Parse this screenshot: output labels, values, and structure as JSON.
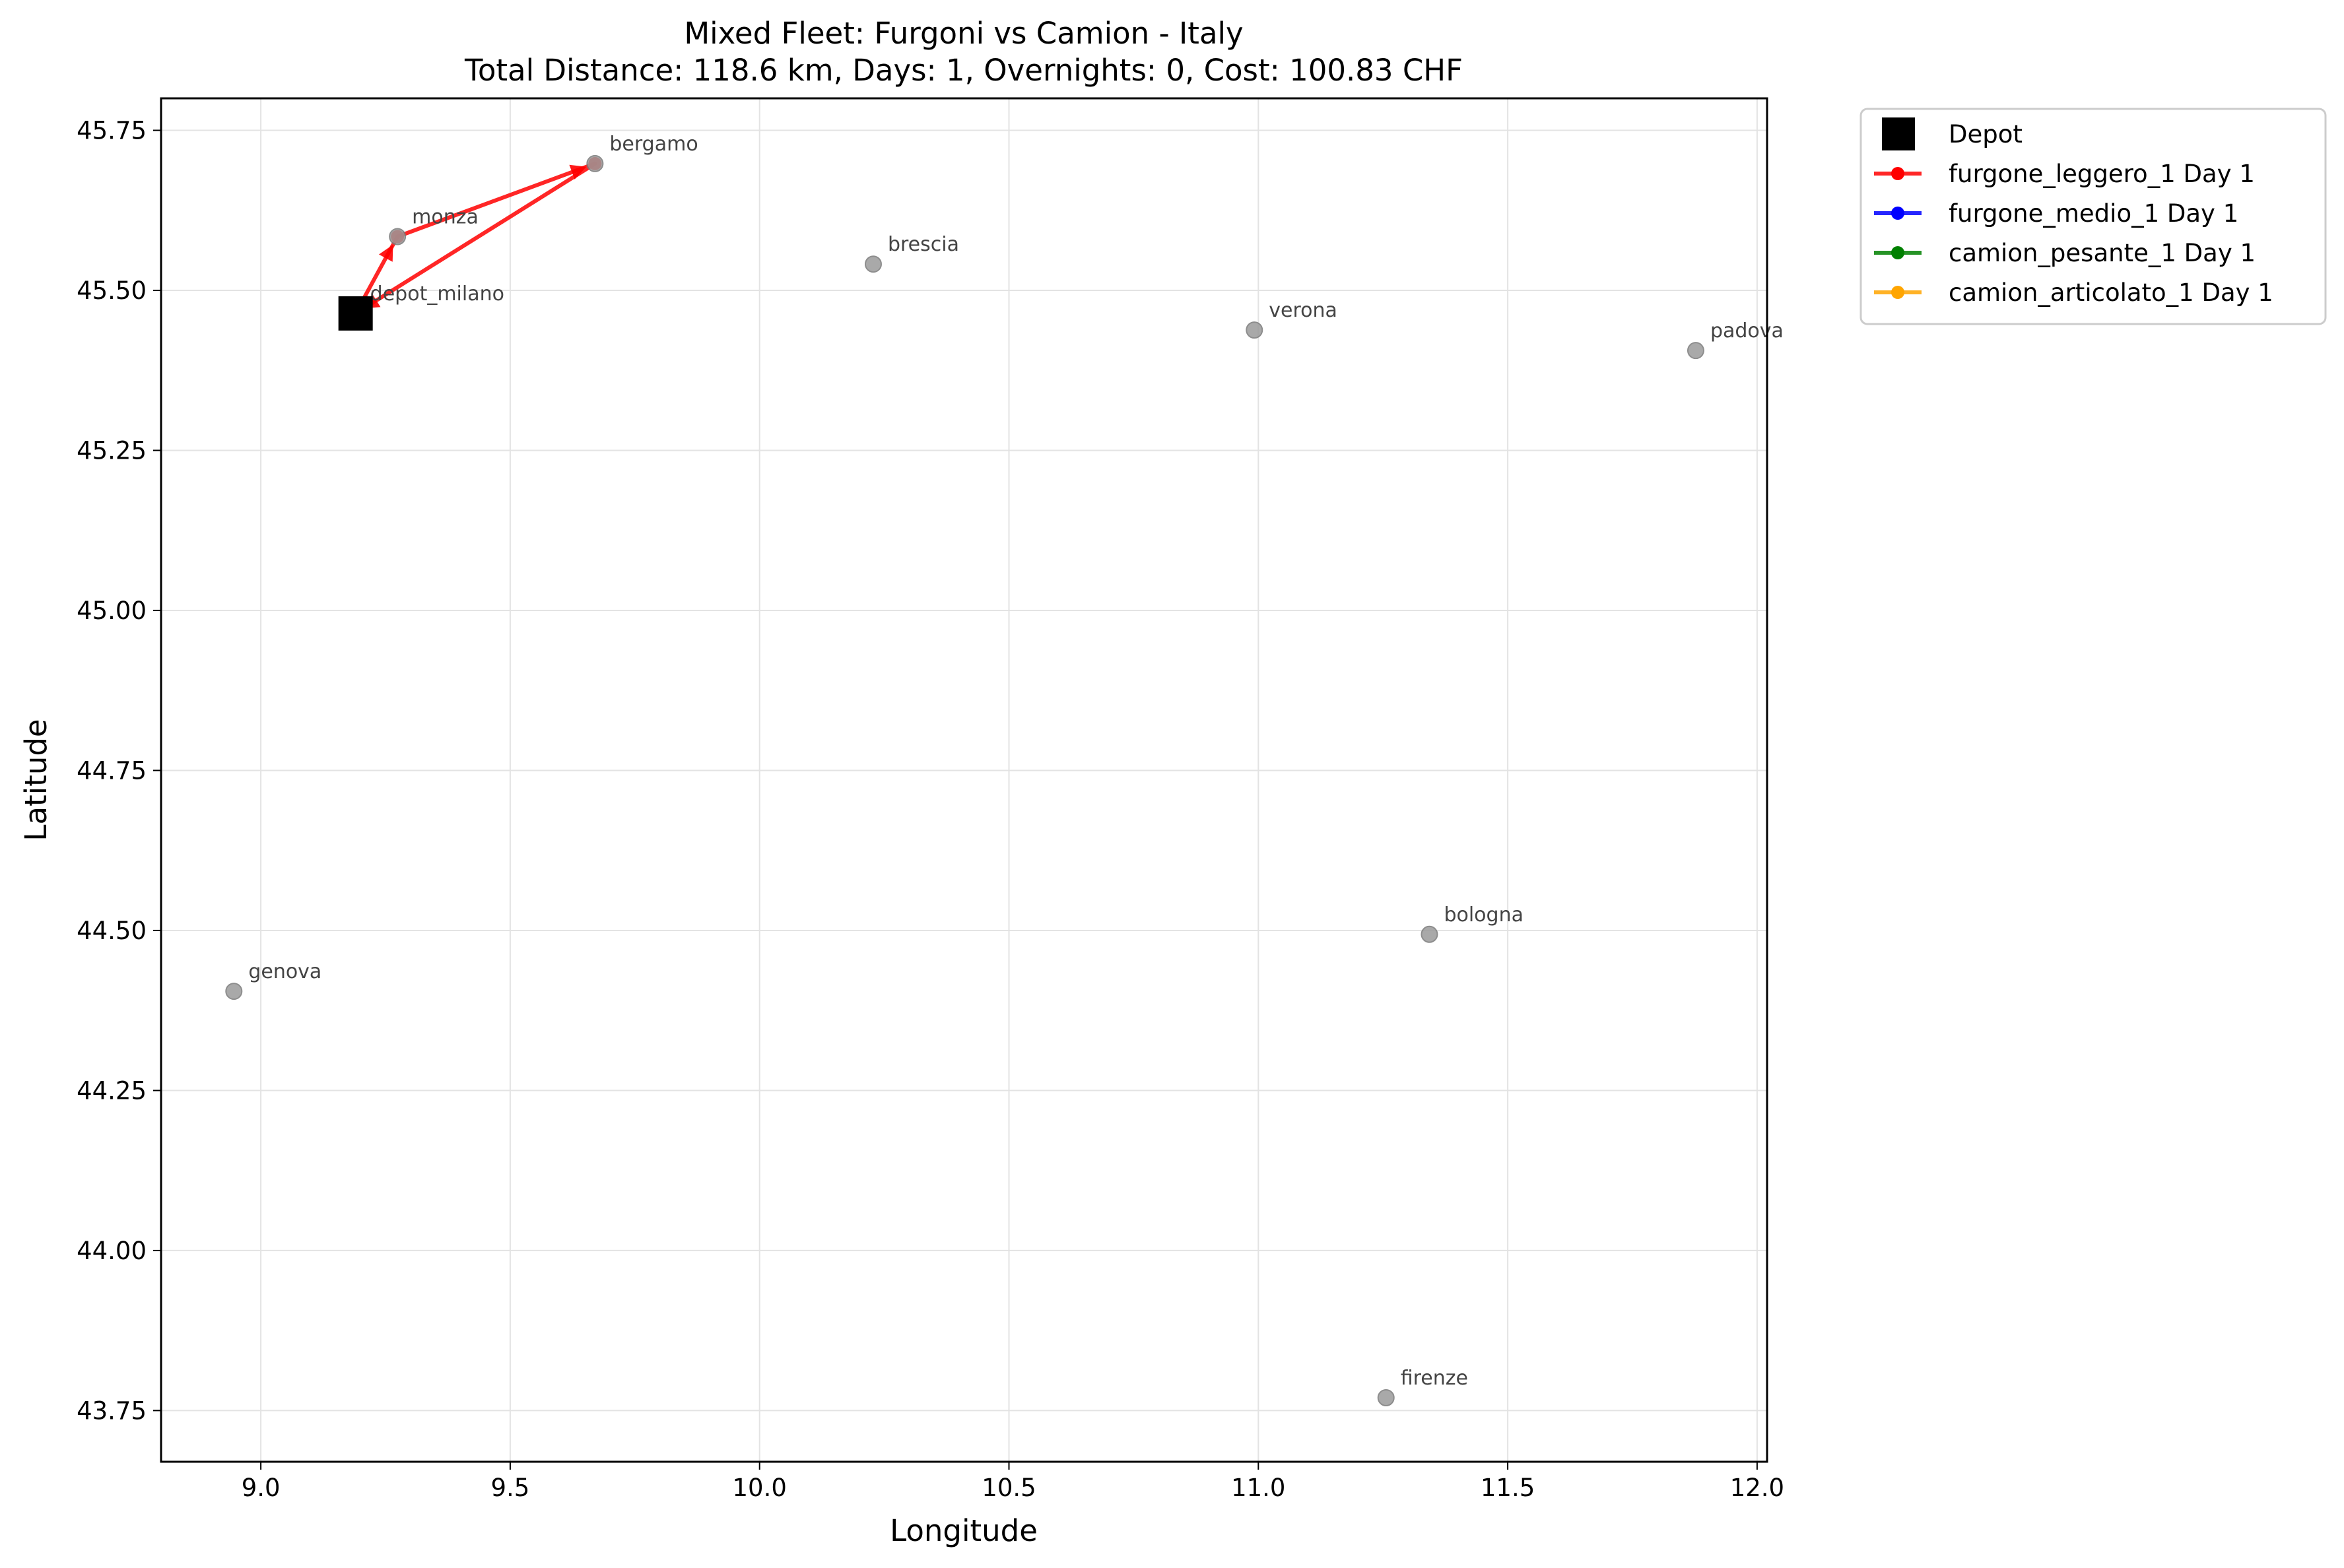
{
  "chart_data": {
    "type": "scatter",
    "title": "Mixed Fleet: Furgoni vs Camion - Italy",
    "subtitle": "Total Distance: 118.6 km, Days: 1, Overnights: 0, Cost: 100.83 CHF",
    "xlabel": "Longitude",
    "ylabel": "Latitude",
    "xlim": [
      8.8,
      12.02
    ],
    "ylim": [
      43.67,
      45.8
    ],
    "xticks": [
      "9.0",
      "9.5",
      "10.0",
      "10.5",
      "11.0",
      "11.5",
      "12.0"
    ],
    "yticks": [
      "43.75",
      "44.00",
      "44.25",
      "44.50",
      "44.75",
      "45.00",
      "45.25",
      "45.50",
      "45.75"
    ],
    "grid": true,
    "legend_placement": "outside upper right",
    "depot": {
      "name": "depot_milano",
      "lon": 9.19,
      "lat": 45.464,
      "color": "#000000"
    },
    "cities": [
      {
        "name": "depot_milano",
        "lon": 9.19,
        "lat": 45.464
      },
      {
        "name": "monza",
        "lon": 9.274,
        "lat": 45.584
      },
      {
        "name": "bergamo",
        "lon": 9.67,
        "lat": 45.698
      },
      {
        "name": "brescia",
        "lon": 10.228,
        "lat": 45.541
      },
      {
        "name": "verona",
        "lon": 10.992,
        "lat": 45.438
      },
      {
        "name": "padova",
        "lon": 11.877,
        "lat": 45.406
      },
      {
        "name": "genova",
        "lon": 8.946,
        "lat": 44.405
      },
      {
        "name": "bologna",
        "lon": 11.343,
        "lat": 44.494
      },
      {
        "name": "firenze",
        "lon": 11.256,
        "lat": 43.77
      }
    ],
    "series": [
      {
        "name": "furgone_leggero_1 Day 1",
        "color": "#ff0000",
        "route": [
          {
            "lon": 9.19,
            "lat": 45.464
          },
          {
            "lon": 9.274,
            "lat": 45.584
          },
          {
            "lon": 9.67,
            "lat": 45.698
          },
          {
            "lon": 9.19,
            "lat": 45.464
          }
        ]
      },
      {
        "name": "furgone_medio_1 Day 1",
        "color": "#0000ff",
        "route": []
      },
      {
        "name": "camion_pesante_1 Day 1",
        "color": "#008000",
        "route": []
      },
      {
        "name": "camion_articolato_1 Day 1",
        "color": "#ffa500",
        "route": [
          {
            "lon": 9.19,
            "lat": 45.464
          }
        ]
      }
    ],
    "legend": [
      "Depot",
      "furgone_leggero_1 Day 1",
      "furgone_medio_1 Day 1",
      "camion_pesante_1 Day 1",
      "camion_articolato_1 Day 1"
    ]
  }
}
